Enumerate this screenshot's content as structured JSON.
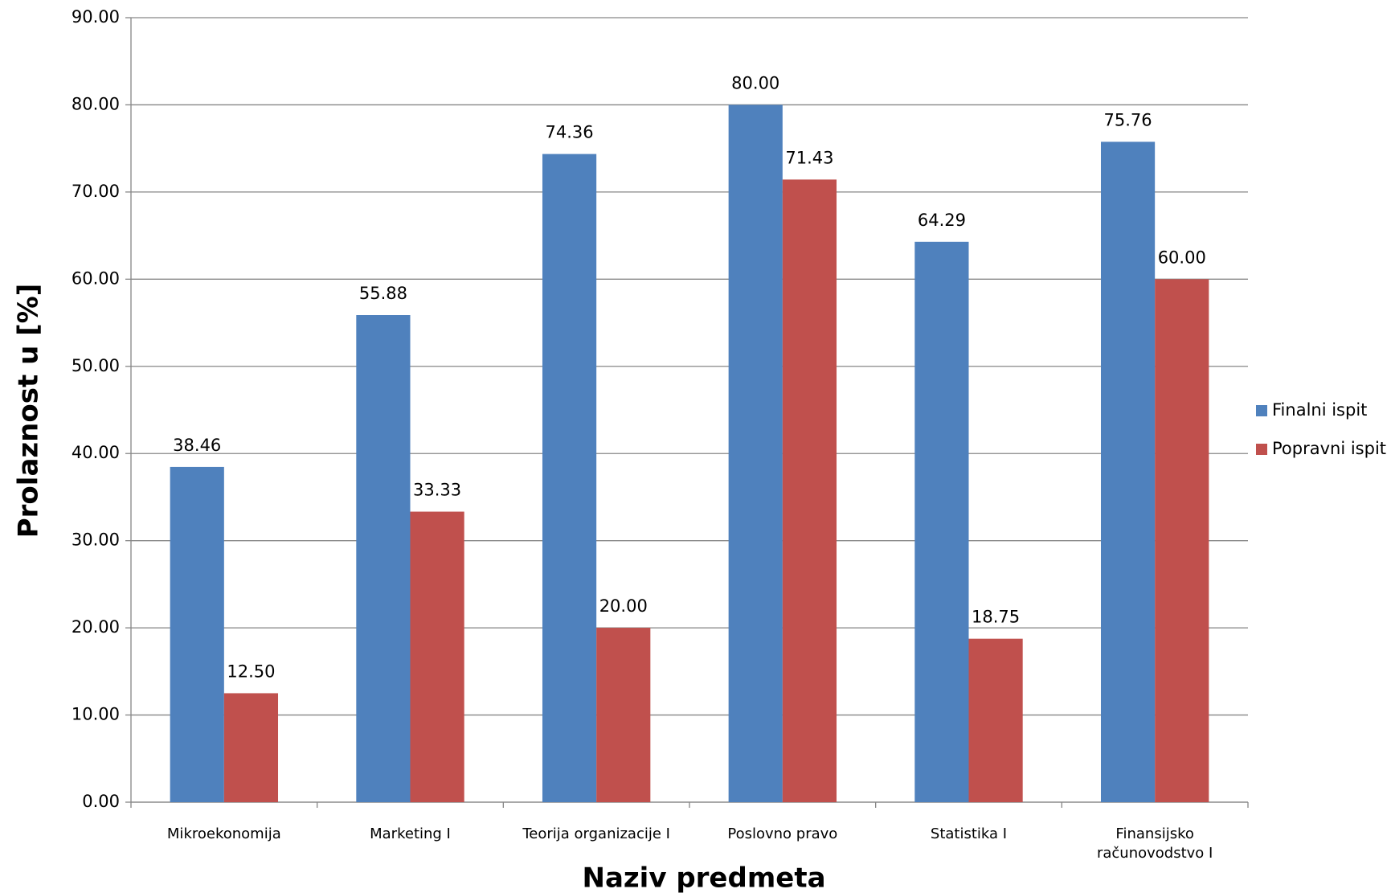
{
  "chart_data": {
    "type": "bar",
    "x_label": "Naziv predmeta",
    "y_label": "Prolaznost u [%]",
    "categories": [
      "Mikroekonomija",
      "Marketing I",
      "Teorija organizacije I",
      "Poslovno pravo",
      "Statistika I",
      "Finansijsko računovodstvo I"
    ],
    "series": [
      {
        "name": "Finalni ispit",
        "color": "#4f81bd",
        "values": [
          38.46,
          55.88,
          74.36,
          80,
          64.29,
          75.76
        ],
        "value_labels": [
          "38.46",
          "55.88",
          "74.36",
          "80.00",
          "64.29",
          "75.76"
        ]
      },
      {
        "name": "Popravni ispit",
        "color": "#c0504d",
        "values": [
          12.5,
          33.33,
          20,
          71.43,
          18.75,
          60
        ],
        "value_labels": [
          "12.50",
          "33.33",
          "20.00",
          "71.43",
          "18.75",
          "60.00"
        ]
      }
    ],
    "ylim": [
      0,
      90
    ],
    "yticks": [
      {
        "value": 0,
        "label": "0.00"
      },
      {
        "value": 10,
        "label": "10.00"
      },
      {
        "value": 20,
        "label": "20.00"
      },
      {
        "value": 30,
        "label": "30.00"
      },
      {
        "value": 40,
        "label": "40.00"
      },
      {
        "value": 50,
        "label": "50.00"
      },
      {
        "value": 60,
        "label": "60.00"
      },
      {
        "value": 70,
        "label": "70.00"
      },
      {
        "value": 80,
        "label": "80.00"
      },
      {
        "value": 90,
        "label": "90.00"
      }
    ],
    "grid": true,
    "legend": "right"
  }
}
